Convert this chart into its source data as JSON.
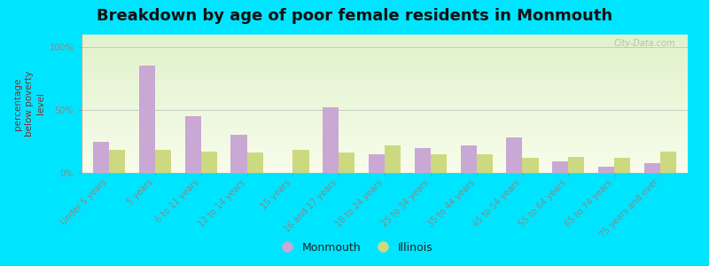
{
  "title": "Breakdown by age of poor female residents in Monmouth",
  "ylabel": "percentage\nbelow poverty\nlevel",
  "categories": [
    "Under 5 years",
    "5 years",
    "6 to 11 years",
    "12 to 14 years",
    "15 years",
    "16 and 17 years",
    "18 to 24 years",
    "25 to 34 years",
    "35 to 44 years",
    "45 to 54 years",
    "55 to 64 years",
    "65 to 74 years",
    "75 years and over"
  ],
  "monmouth": [
    25,
    85,
    45,
    30,
    0,
    52,
    15,
    20,
    22,
    28,
    9,
    5,
    8
  ],
  "illinois": [
    18,
    18,
    17,
    16,
    18,
    16,
    22,
    15,
    15,
    12,
    13,
    12,
    17
  ],
  "monmouth_color": "#c9a8d4",
  "illinois_color": "#ccd980",
  "outer_background": "#00e5ff",
  "plot_bg_color": "#edf5dc",
  "ytick_labels": [
    "0%",
    "50%",
    "100%"
  ],
  "ytick_vals": [
    0,
    50,
    100
  ],
  "bar_width": 0.35,
  "title_fontsize": 13,
  "ylabel_fontsize": 7.5,
  "tick_fontsize": 7,
  "legend_fontsize": 9,
  "watermark": "City-Data.com"
}
